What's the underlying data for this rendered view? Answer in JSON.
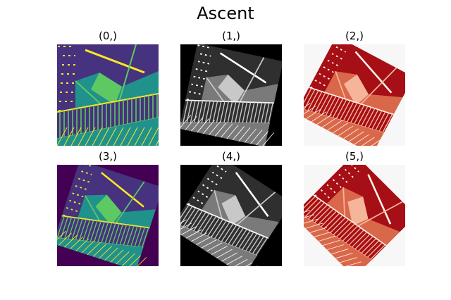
{
  "figure": {
    "title": "Ascent"
  },
  "panels": [
    {
      "label": "(0,)",
      "colormap": "viridis",
      "rotation_deg": 0
    },
    {
      "label": "(1,)",
      "colormap": "gray",
      "rotation_deg": 12
    },
    {
      "label": "(2,)",
      "colormap": "reds",
      "rotation_deg": 28
    },
    {
      "label": "(3,)",
      "colormap": "viridis",
      "rotation_deg": 18
    },
    {
      "label": "(4,)",
      "colormap": "gray",
      "rotation_deg": 33
    },
    {
      "label": "(5,)",
      "colormap": "reds",
      "rotation_deg": 45
    }
  ],
  "colormaps": {
    "viridis": {
      "background": "#440154",
      "dark": "#46327e",
      "mid": "#21918c",
      "light": "#5ec962",
      "bright": "#fde725"
    },
    "gray": {
      "background": "#000000",
      "dark": "#2f2f2f",
      "mid": "#7a7a7a",
      "light": "#c8c8c8",
      "bright": "#ffffff"
    },
    "reds": {
      "background": "#f7f7f7",
      "dark": "#a50f15",
      "mid": "#d9684b",
      "light": "#f5b59a",
      "bright": "#fff1ea"
    }
  }
}
